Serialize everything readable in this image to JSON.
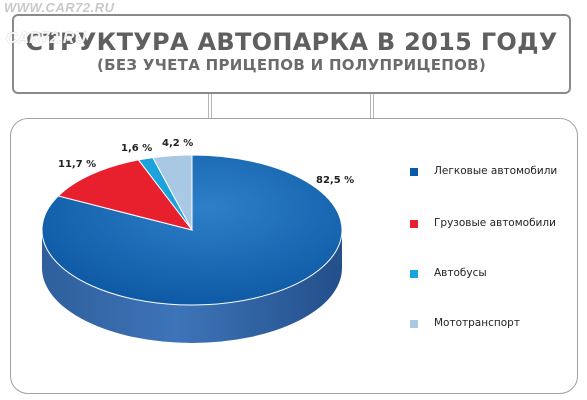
{
  "watermark": {
    "top": "WWW.CAR72.RU",
    "logo": "CAR72.RU"
  },
  "header": {
    "title": "СТРУКТУРА АВТОПАРКА В 2015 ГОДУ",
    "subtitle": "(БЕЗ УЧЕТА ПРИЦЕПОВ И ПОЛУПРИЦЕПОВ)"
  },
  "chart_data": {
    "type": "pie",
    "title": "СТРУКТУРА АВТОПАРКА В 2015 ГОДУ",
    "subtitle": "(БЕЗ УЧЕТА ПРИЦЕПОВ И ПОЛУПРИЦЕПОВ)",
    "categories": [
      "Легковые автомобили",
      "Грузовые автомобили",
      "Автобусы",
      "Мототранспорт"
    ],
    "values": [
      82.5,
      11.7,
      1.6,
      4.2
    ],
    "labels": [
      "82,5 %",
      "11,7 %",
      "1,6 %",
      "4,2 %"
    ],
    "colors": [
      "#0a5aa8",
      "#e8202e",
      "#1aa3dc",
      "#a9c8e4"
    ],
    "legend_position": "right",
    "style": "3d"
  }
}
